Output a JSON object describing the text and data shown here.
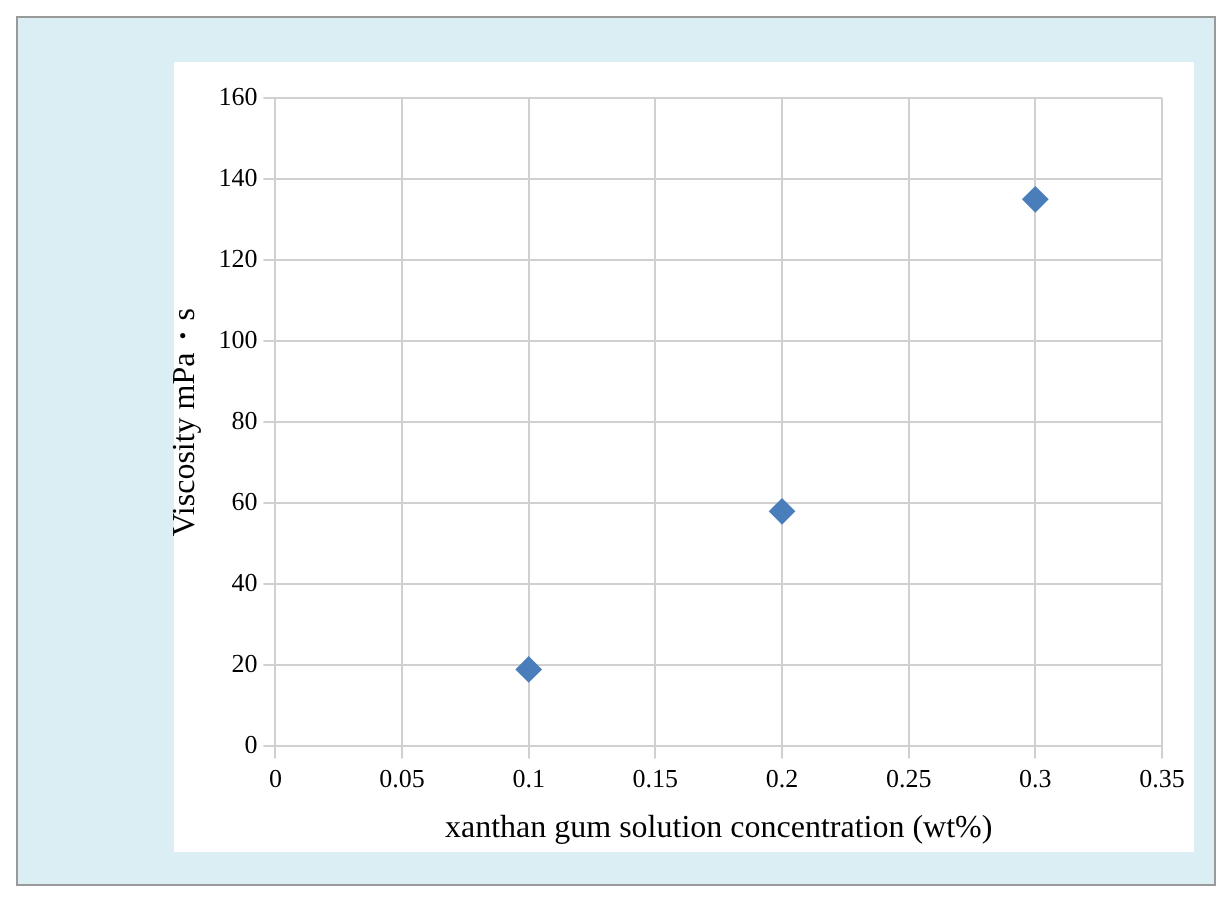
{
  "chart_data": {
    "type": "scatter",
    "xlabel": "xanthan gum solution concentration (wt%)",
    "ylabel": "Viscosity mPa・s",
    "x": [
      0.1,
      0.2,
      0.3
    ],
    "series": [
      {
        "color": "#4a7ebb",
        "values": [
          19,
          58,
          135
        ]
      }
    ],
    "xlim": [
      0,
      0.35
    ],
    "xticks": [
      0,
      0.05,
      0.1,
      0.15,
      0.2,
      0.25,
      0.3,
      0.35
    ],
    "ylim": [
      0,
      160
    ],
    "yticks": [
      0,
      20,
      40,
      60,
      80,
      100,
      120,
      140,
      160
    ],
    "grid": true,
    "marker": "diamond",
    "legend": false
  }
}
